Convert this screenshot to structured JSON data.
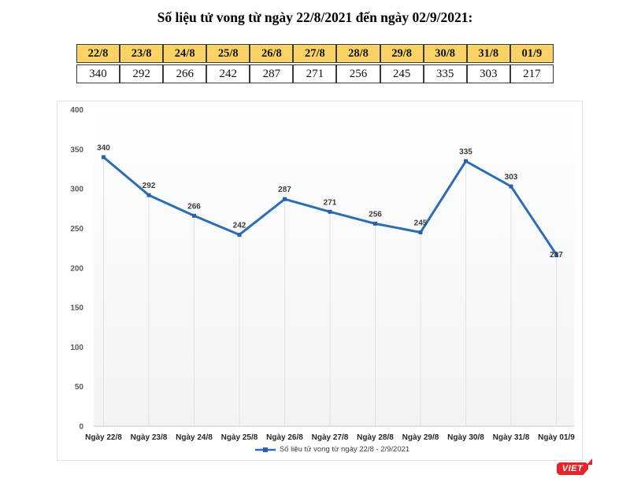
{
  "page": {
    "title": "Số liệu tử vong từ ngày 22/8/2021 đến ngày 02/9/2021:"
  },
  "table": {
    "headers": [
      "22/8",
      "23/8",
      "24/8",
      "25/8",
      "26/8",
      "27/8",
      "28/8",
      "29/8",
      "30/8",
      "31/8",
      "01/9"
    ],
    "values": [
      "340",
      "292",
      "266",
      "242",
      "287",
      "271",
      "256",
      "245",
      "335",
      "303",
      "217"
    ],
    "header_bg": "#FBD364"
  },
  "chart_data": {
    "type": "line",
    "categories": [
      "Ngày 22/8",
      "Ngày 23/8",
      "Ngày 24/8",
      "Ngày 25/8",
      "Ngày 26/8",
      "Ngày 27/8",
      "Ngày 28/8",
      "Ngày 29/8",
      "Ngày 30/8",
      "Ngày 31/8",
      "Ngày 01/9"
    ],
    "series": [
      {
        "name": "Số liệu tử vong từ ngày 22/8 - 2/9/2021",
        "values": [
          340,
          292,
          266,
          242,
          287,
          271,
          256,
          245,
          335,
          303,
          217
        ]
      }
    ],
    "title": "",
    "xlabel": "",
    "ylabel": "",
    "ylim": [
      0,
      400
    ],
    "ytick_step": 50,
    "grid": "vertical-drop-lines",
    "legend_position": "bottom",
    "data_labels": true,
    "colors": {
      "line": "#2E6DB5",
      "marker": "#2A62A8",
      "drop_line": "#E0E2E5",
      "axis_line": "#C8CACC",
      "plot_bg_top": "#FFFFFF",
      "plot_bg_bottom": "#F2F3F5",
      "ytick_text": "#595959",
      "xtick_text": "#262626",
      "data_label_text": "#3D3D3D"
    }
  },
  "logo": {
    "text": "VIET",
    "color": "#E5242B"
  }
}
